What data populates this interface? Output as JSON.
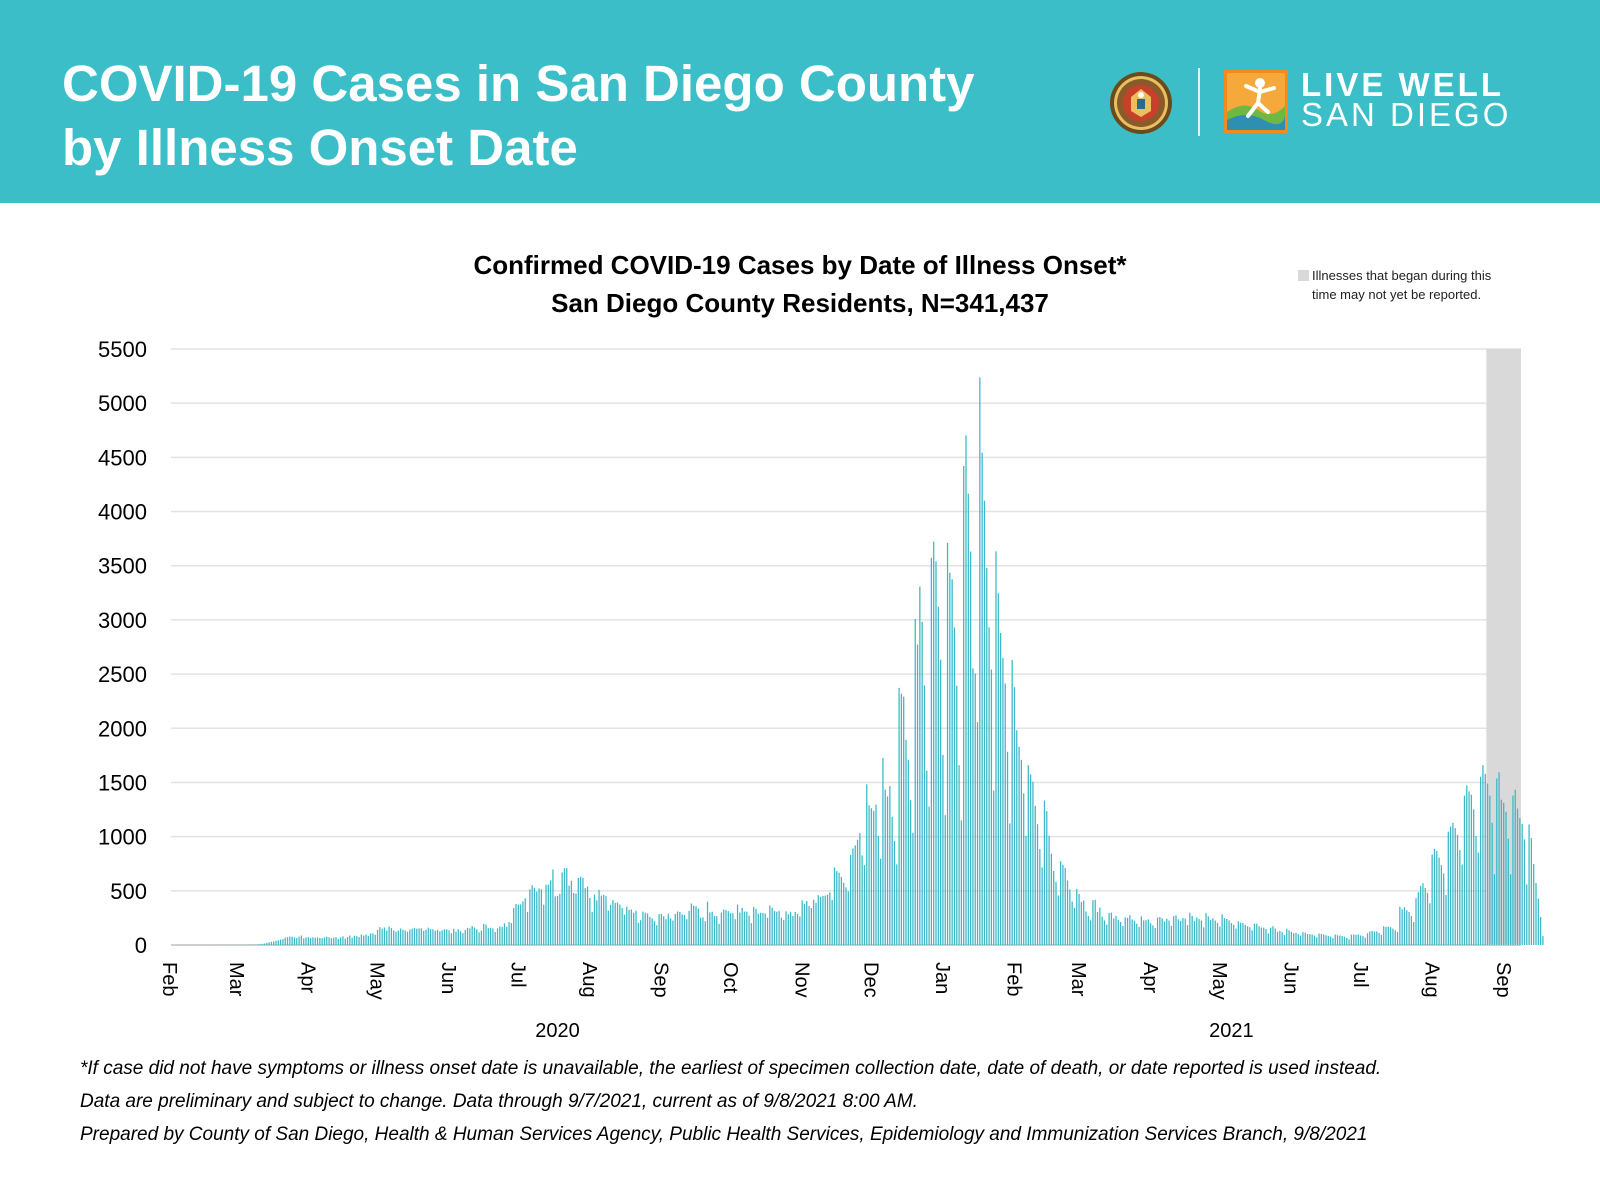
{
  "header": {
    "title_line1": "COVID-19 Cases in San Diego County",
    "title_line2": "by Illness Onset Date",
    "background_color": "#3bbec8",
    "logo_text_line1": "LIVE WELL",
    "logo_text_line2": "SAN DIEGO"
  },
  "chart_data": {
    "type": "bar",
    "title_line1": "Confirmed COVID-19 Cases by Date of Illness Onset*",
    "title_line2": "San Diego County Residents, N=341,437",
    "bar_color": "#3cb8c8",
    "ylim": [
      0,
      5500
    ],
    "yticks": [
      "0",
      "500",
      "1000",
      "1500",
      "2000",
      "2500",
      "3000",
      "3500",
      "4000",
      "4500",
      "5000",
      "5500"
    ],
    "grid": true,
    "month_labels": [
      "Feb",
      "Mar",
      "Apr",
      "May",
      "Jun",
      "Jul",
      "Aug",
      "Sep",
      "Oct",
      "Nov",
      "Dec",
      "Jan",
      "Feb",
      "Mar",
      "Apr",
      "May",
      "Jun",
      "Jul",
      "Aug",
      "Sep"
    ],
    "month_start_dates": [
      "2020-02-01",
      "2020-03-01",
      "2020-04-01",
      "2020-05-01",
      "2020-06-01",
      "2020-07-01",
      "2020-08-01",
      "2020-09-01",
      "2020-10-01",
      "2020-11-01",
      "2020-12-01",
      "2021-01-01",
      "2021-02-01",
      "2021-03-01",
      "2021-04-01",
      "2021-05-01",
      "2021-06-01",
      "2021-07-01",
      "2021-08-01",
      "2021-09-01"
    ],
    "year_labels": [
      "2020",
      "2021"
    ],
    "x_range": [
      "2020-02-01",
      "2021-09-07"
    ],
    "shaded_region": {
      "start": "2021-08-24",
      "end": "2021-09-07",
      "color": "#d9d9d9"
    },
    "legend": {
      "text_line1": "Illnesses that began during this",
      "text_line2": "time may not yet be reported.",
      "position": "top-right"
    },
    "series": [
      {
        "start_date": "2020-02-01",
        "end_date": "2021-09-07",
        "values": [
          0,
          0,
          0,
          0,
          0,
          0,
          0,
          0,
          0,
          0,
          1,
          0,
          1,
          0,
          1,
          0,
          0,
          1,
          1,
          1,
          0,
          2,
          0,
          1,
          2,
          0,
          1,
          2,
          0,
          2,
          1,
          1,
          2,
          1,
          4,
          3,
          3,
          5,
          7,
          11,
          14,
          20,
          24,
          29,
          34,
          39,
          44,
          50,
          55,
          68,
          72,
          78,
          76,
          70,
          65,
          77,
          88,
          60,
          70,
          72,
          65,
          71,
          67,
          70,
          66,
          63,
          71,
          76,
          71,
          62,
          66,
          73,
          55,
          69,
          80,
          59,
          73,
          87,
          67,
          86,
          81,
          72,
          97,
          86,
          97,
          84,
          105,
          107,
          94,
          139,
          165,
          151,
          162,
          133,
          170,
          156,
          135,
          123,
          133,
          152,
          142,
          134,
          123,
          141,
          151,
          158,
          151,
          153,
          153,
          131,
          141,
          160,
          147,
          145,
          132,
          140,
          126,
          136,
          145,
          145,
          135,
          109,
          149,
          123,
          145,
          127,
          109,
          139,
          158,
          154,
          175,
          162,
          145,
          116,
          133,
          195,
          187,
          155,
          159,
          153,
          120,
          153,
          171,
          166,
          200,
          169,
          212,
          202,
          342,
          378,
          372,
          375,
          403,
          431,
          305,
          513,
          552,
          528,
          493,
          522,
          514,
          371,
          556,
          557,
          597,
          697,
          449,
          454,
          472,
          669,
          708,
          710,
          548,
          593,
          480,
          475,
          619,
          630,
          619,
          525,
          540,
          433,
          306,
          465,
          412,
          509,
          454,
          462,
          451,
          318,
          371,
          414,
          389,
          393,
          373,
          341,
          280,
          354,
          324,
          328,
          298,
          316,
          205,
          229,
          308,
          298,
          291,
          260,
          247,
          219,
          182,
          285,
          288,
          266,
          238,
          289,
          246,
          226,
          286,
          310,
          305,
          283,
          277,
          238,
          315,
          383,
          363,
          357,
          336,
          252,
          255,
          219,
          400,
          301,
          307,
          269,
          266,
          195,
          299,
          328,
          322,
          313,
          293,
          294,
          238,
          373,
          300,
          342,
          309,
          308,
          271,
          201,
          352,
          334,
          289,
          298,
          296,
          290,
          251,
          365,
          343,
          315,
          307,
          316,
          252,
          231,
          311,
          284,
          306,
          268,
          305,
          286,
          264,
          412,
          378,
          406,
          359,
          341,
          417,
          389,
          460,
          445,
          453,
          456,
          463,
          486,
          417,
          716,
          682,
          667,
          628,
          576,
          532,
          495,
          831,
          891,
          919,
          971,
          1032,
          827,
          737,
          1483,
          1289,
          1262,
          1238,
          1296,
          1008,
          796,
          1725,
          1435,
          1371,
          1466,
          1183,
          960,
          744,
          2373,
          2319,
          2292,
          1894,
          1709,
          1337,
          1036,
          3009,
          2772,
          3308,
          2982,
          2395,
          1608,
          1277,
          3573,
          3723,
          3540,
          3122,
          2633,
          1754,
          1198,
          3711,
          3435,
          3375,
          2930,
          2393,
          1659,
          1150,
          4420,
          4702,
          4166,
          3631,
          2553,
          2506,
          2057,
          5237,
          4543,
          4100,
          3479,
          2931,
          2542,
          1426,
          3633,
          3246,
          2880,
          2650,
          2414,
          1783,
          1122,
          2631,
          2379,
          1982,
          1829,
          1709,
          1399,
          1008,
          1659,
          1573,
          1508,
          1284,
          1115,
          885,
          715,
          1333,
          1236,
          1009,
          842,
          683,
          583,
          457,
          773,
          739,
          710,
          596,
          512,
          402,
          343,
          516,
          472,
          396,
          411,
          309,
          268,
          227,
          414,
          417,
          304,
          345,
          263,
          227,
          186,
          295,
          298,
          245,
          268,
          231,
          212,
          176,
          255,
          250,
          276,
          236,
          224,
          197,
          166,
          265,
          227,
          228,
          237,
          201,
          181,
          157,
          253,
          259,
          246,
          216,
          243,
          226,
          177,
          266,
          274,
          237,
          223,
          249,
          244,
          183,
          298,
          270,
          223,
          254,
          239,
          227,
          163,
          295,
          264,
          230,
          247,
          226,
          205,
          170,
          282,
          248,
          240,
          227,
          202,
          187,
          152,
          219,
          204,
          203,
          186,
          173,
          164,
          135,
          196,
          197,
          173,
          161,
          160,
          148,
          106,
          160,
          174,
          152,
          122,
          131,
          119,
          92,
          151,
          136,
          122,
          109,
          113,
          101,
          88,
          119,
          114,
          101,
          101,
          97,
          88,
          71,
          106,
          103,
          98,
          90,
          84,
          77,
          63,
          96,
          90,
          87,
          83,
          77,
          66,
          52,
          96,
          98,
          94,
          97,
          88,
          81,
          67,
          108,
          125,
          130,
          124,
          126,
          112,
          94,
          173,
          167,
          170,
          164,
          151,
          136,
          120,
          353,
          330,
          349,
          321,
          305,
          268,
          212,
          431,
          487,
          545,
          570,
          527,
          481,
          385,
          834,
          887,
          868,
          806,
          736,
          661,
          461,
          1046,
          1093,
          1128,
          1078,
          1016,
          875,
          743,
          1378,
          1472,
          1418,
          1388,
          1252,
          1006,
          853,
          1553,
          1659,
          1580,
          1490,
          1379,
          1129,
          653,
          1537,
          1594,
          1341,
          1312,
          1230,
          982,
          652,
          1379,
          1433,
          1259,
          1172,
          1118,
          975,
          558,
          1112,
          987,
          748,
          573,
          427,
          258,
          82
        ]
      }
    ]
  },
  "footnotes": [
    "*If case did not have symptoms or illness onset date is unavailable, the earliest of specimen collection date, date of death, or date reported is used instead.",
    "Data are preliminary and subject to change. Data through 9/7/2021, current as of 9/8/2021 8:00 AM.",
    "Prepared by County of San Diego, Health & Human Services Agency, Public Health Services, Epidemiology and Immunization Services Branch, 9/8/2021"
  ]
}
